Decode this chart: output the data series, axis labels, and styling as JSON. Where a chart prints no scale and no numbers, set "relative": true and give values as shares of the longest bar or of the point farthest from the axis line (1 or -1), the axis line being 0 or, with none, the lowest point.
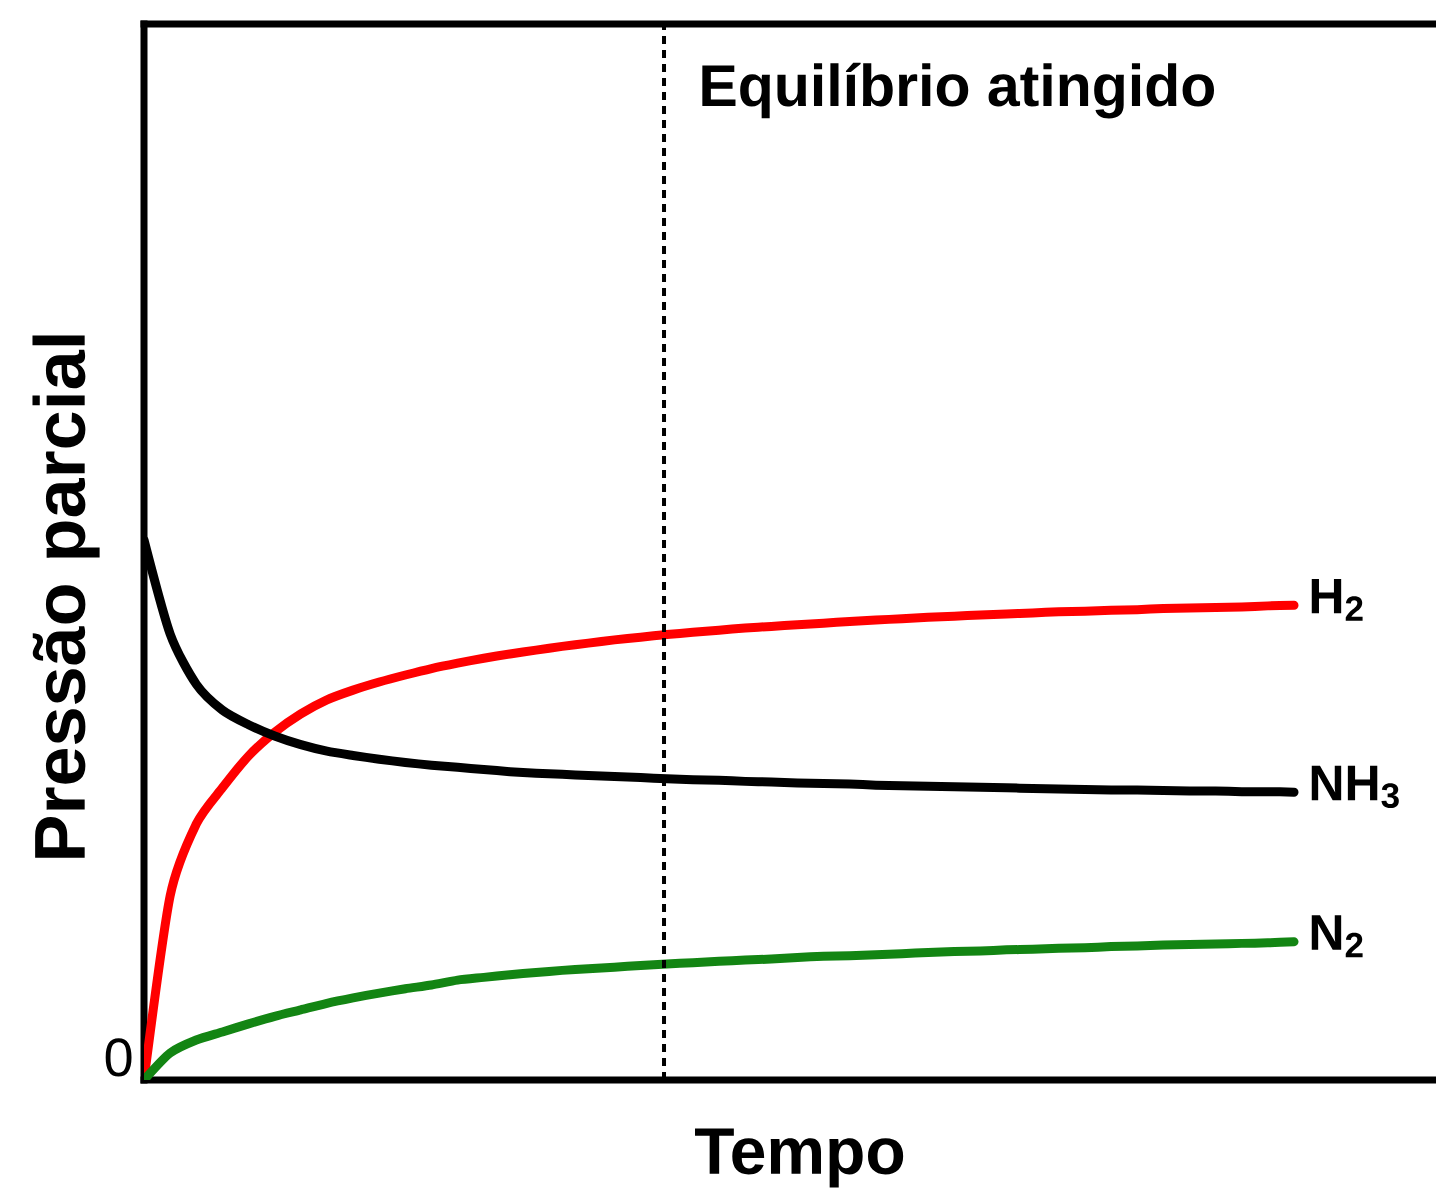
{
  "chart_data": {
    "type": "line",
    "relative": true,
    "xlabel": "Tempo",
    "ylabel": "Pressão parcial",
    "categories": [
      null,
      null,
      null,
      null,
      null,
      null,
      null,
      null,
      null,
      null,
      null,
      null,
      null,
      null,
      null,
      null,
      null,
      null,
      null,
      null,
      null,
      null,
      null,
      null,
      null,
      null,
      null,
      null,
      null,
      null,
      null,
      null,
      null,
      null,
      null,
      null,
      null,
      null,
      null,
      null,
      null,
      null,
      null,
      null,
      null
    ],
    "series": [
      {
        "name": "H$_{2}$",
        "color": "#ff0000",
        "values": [
          0,
          0.341,
          0.474,
          0.541,
          0.6,
          0.644,
          0.678,
          0.704,
          0.722,
          0.737,
          0.75,
          0.762,
          0.772,
          0.781,
          0.789,
          0.796,
          0.803,
          0.809,
          0.815,
          0.82,
          0.825,
          0.829,
          0.833,
          0.837,
          0.84,
          0.843,
          0.846,
          0.849,
          0.852,
          0.854,
          0.857,
          0.859,
          0.861,
          0.863,
          0.865,
          0.867,
          0.868,
          0.87,
          0.871,
          0.873,
          0.874,
          0.875,
          0.876,
          0.878,
          0.879
        ]
      },
      {
        "name": "NH$_{3}$",
        "color": "#000000",
        "values": [
          1,
          0.826,
          0.733,
          0.685,
          0.658,
          0.637,
          0.621,
          0.609,
          0.601,
          0.594,
          0.588,
          0.583,
          0.579,
          0.575,
          0.571,
          0.568,
          0.566,
          0.564,
          0.562,
          0.56,
          0.558,
          0.556,
          0.555,
          0.553,
          0.552,
          0.55,
          0.549,
          0.548,
          0.546,
          0.545,
          0.544,
          0.543,
          0.542,
          0.541,
          0.54,
          0.539,
          0.538,
          0.537,
          0.537,
          0.536,
          0.535,
          0.535,
          0.534,
          0.534,
          0.533
        ]
      },
      {
        "name": "N$_{2}$",
        "color": "#138513",
        "values": [
          0,
          0.05,
          0.074,
          0.089,
          0.104,
          0.118,
          0.13,
          0.142,
          0.152,
          0.161,
          0.169,
          0.176,
          0.185,
          0.19,
          0.195,
          0.199,
          0.203,
          0.206,
          0.209,
          0.212,
          0.215,
          0.217,
          0.22,
          0.222,
          0.224,
          0.227,
          0.229,
          0.23,
          0.232,
          0.234,
          0.236,
          0.238,
          0.239,
          0.241,
          0.242,
          0.244,
          0.245,
          0.247,
          0.248,
          0.25,
          0.251,
          0.252,
          0.253,
          0.254,
          0.256
        ]
      }
    ],
    "annotations": [
      "Equilíbrio atingido",
      "0"
    ],
    "marker": "none"
  }
}
